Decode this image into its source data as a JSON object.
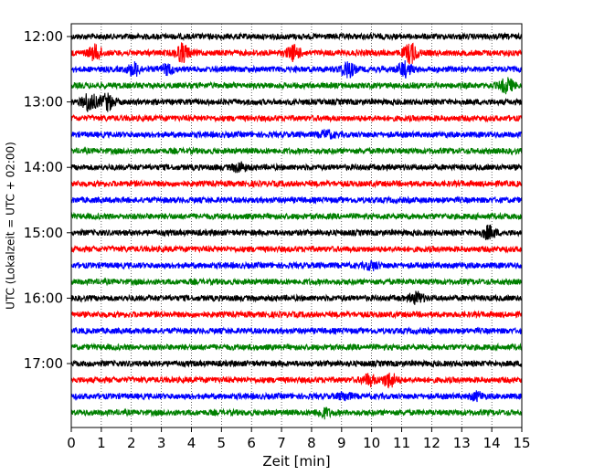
{
  "chart_data": {
    "type": "line",
    "title": "",
    "xlabel": "Zeit  [min]",
    "ylabel": "UTC (Lokalzeit = UTC + 02:00)",
    "xlim": [
      0,
      15
    ],
    "x_ticks": [
      "0",
      "1",
      "2",
      "3",
      "4",
      "5",
      "6",
      "7",
      "8",
      "9",
      "10",
      "11",
      "12",
      "13",
      "14",
      "15"
    ],
    "y_ticks": [
      {
        "label": "12:00",
        "trace": 0
      },
      {
        "label": "13:00",
        "trace": 4
      },
      {
        "label": "14:00",
        "trace": 8
      },
      {
        "label": "15:00",
        "trace": 12
      },
      {
        "label": "16:00",
        "trace": 16
      },
      {
        "label": "17:00",
        "trace": 20
      }
    ],
    "grid": "vertical dotted",
    "trace_interval_min": 15,
    "first_trace_start": "12:00",
    "trace_count": 24,
    "color_cycle": [
      "#000000",
      "#ff0000",
      "#0000ff",
      "#008000"
    ],
    "traces": [
      {
        "start": "12:00",
        "events": []
      },
      {
        "start": "12:15",
        "events": [
          {
            "t": 0.8,
            "amp": 0.8
          },
          {
            "t": 3.7,
            "amp": 1.0
          },
          {
            "t": 7.4,
            "amp": 0.8
          },
          {
            "t": 11.3,
            "amp": 1.1
          }
        ]
      },
      {
        "start": "12:30",
        "events": [
          {
            "t": 2.1,
            "amp": 0.7
          },
          {
            "t": 3.2,
            "amp": 0.5
          },
          {
            "t": 9.2,
            "amp": 0.9
          },
          {
            "t": 11.1,
            "amp": 0.8
          }
        ]
      },
      {
        "start": "12:45",
        "events": [
          {
            "t": 14.5,
            "amp": 0.8
          }
        ]
      },
      {
        "start": "13:00",
        "events": [
          {
            "t": 0.6,
            "amp": 1.1
          },
          {
            "t": 1.2,
            "amp": 0.9
          }
        ]
      },
      {
        "start": "13:15",
        "events": []
      },
      {
        "start": "13:30",
        "events": [
          {
            "t": 8.5,
            "amp": 0.4
          }
        ]
      },
      {
        "start": "13:45",
        "events": []
      },
      {
        "start": "14:00",
        "events": [
          {
            "t": 5.6,
            "amp": 0.5
          }
        ]
      },
      {
        "start": "14:15",
        "events": []
      },
      {
        "start": "14:30",
        "events": []
      },
      {
        "start": "14:45",
        "events": []
      },
      {
        "start": "15:00",
        "events": [
          {
            "t": 13.9,
            "amp": 0.7
          }
        ]
      },
      {
        "start": "15:15",
        "events": []
      },
      {
        "start": "15:30",
        "events": [
          {
            "t": 10.0,
            "amp": 0.4
          }
        ]
      },
      {
        "start": "15:45",
        "events": []
      },
      {
        "start": "16:00",
        "events": [
          {
            "t": 11.5,
            "amp": 0.6
          }
        ]
      },
      {
        "start": "16:15",
        "events": []
      },
      {
        "start": "16:30",
        "events": []
      },
      {
        "start": "16:45",
        "events": []
      },
      {
        "start": "17:00",
        "events": []
      },
      {
        "start": "17:15",
        "events": [
          {
            "t": 9.9,
            "amp": 0.6
          },
          {
            "t": 10.6,
            "amp": 0.8
          }
        ]
      },
      {
        "start": "17:30",
        "events": [
          {
            "t": 9.1,
            "amp": 0.4
          },
          {
            "t": 13.5,
            "amp": 0.4
          }
        ]
      },
      {
        "start": "17:45",
        "events": [
          {
            "t": 8.4,
            "amp": 0.5
          }
        ]
      }
    ]
  }
}
